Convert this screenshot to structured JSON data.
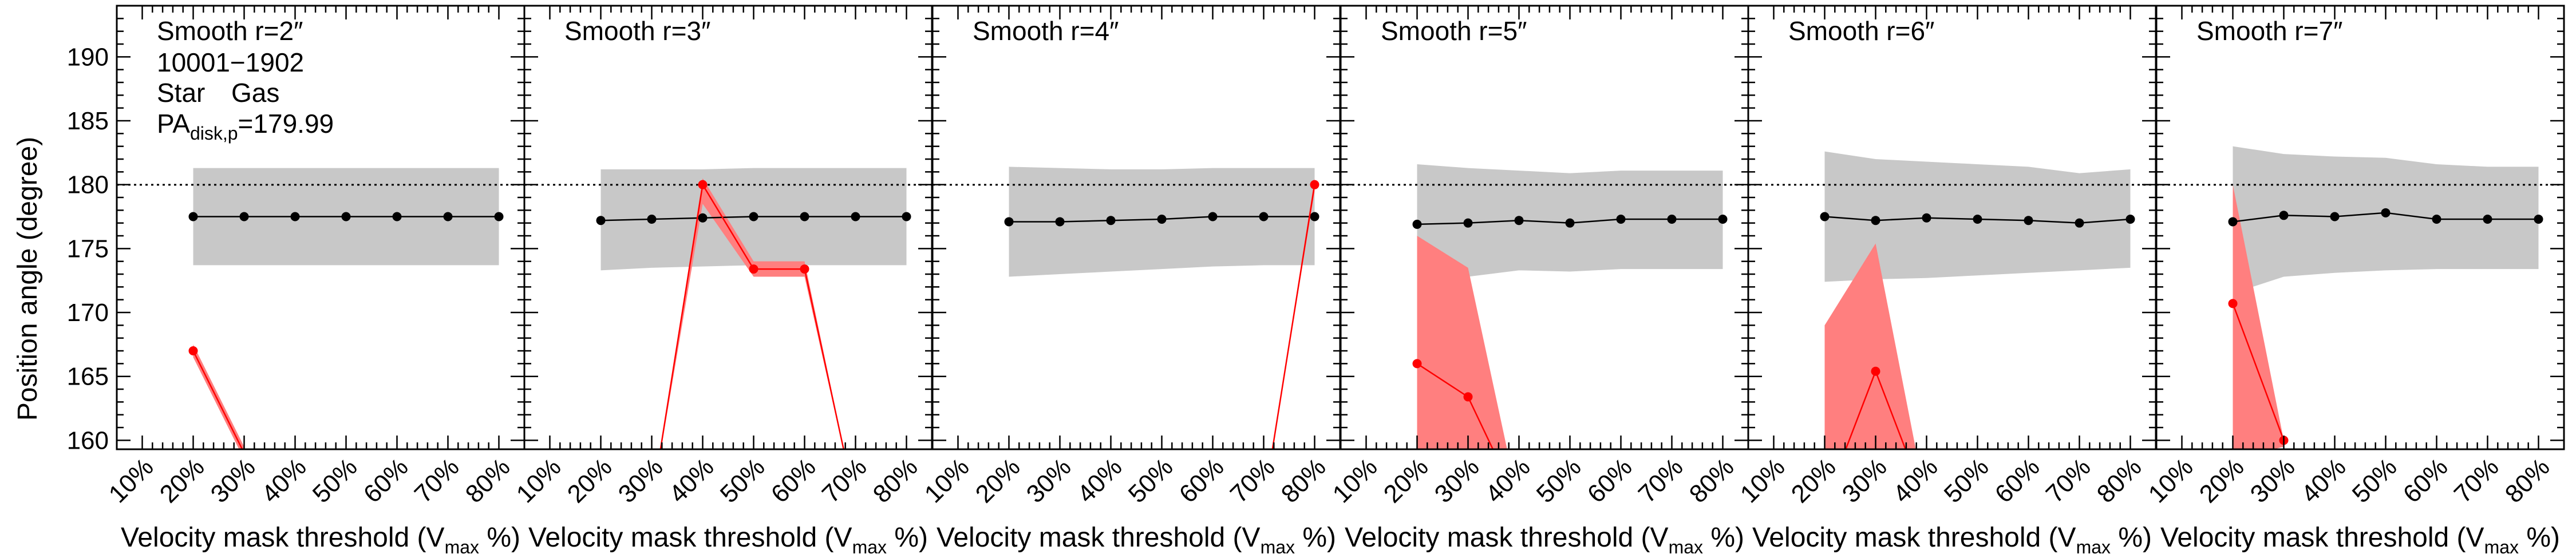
{
  "ylabel": "Position angle (degree)",
  "xlabel_main": "Velocity mask threshold (V",
  "xlabel_sub": "max",
  "xlabel_tail": " %)",
  "legend": {
    "star": "Star",
    "gas": "Gas",
    "id": "10001−1902",
    "pa_main": "PA",
    "pa_sub": "disk,p",
    "pa_value": "=179.99"
  },
  "colors": {
    "star": "#000000",
    "gas": "#ff0000",
    "gas_band": "#ff7f7f",
    "star_band": "#c8c8c8",
    "reference": "#000000"
  },
  "chart_data": {
    "type": "line",
    "x_ticks": [
      "10%",
      "20%",
      "30%",
      "40%",
      "50%",
      "60%",
      "70%",
      "80%"
    ],
    "xlim": [
      5,
      85
    ],
    "ylim": [
      159.3,
      194
    ],
    "y_ticks": [
      160,
      165,
      170,
      175,
      180,
      185,
      190
    ],
    "reference_line": 179.99,
    "panels": [
      {
        "title": "Smooth r=2″",
        "star": {
          "x": [
            20,
            30,
            40,
            50,
            60,
            70,
            80
          ],
          "y": [
            177.5,
            177.5,
            177.5,
            177.5,
            177.5,
            177.5,
            177.5
          ],
          "lower": [
            173.7,
            173.7,
            173.7,
            173.7,
            173.7,
            173.7,
            173.7
          ],
          "upper": [
            181.3,
            181.3,
            181.3,
            181.3,
            181.3,
            181.3,
            181.3
          ]
        },
        "gas": {
          "x": [
            20,
            30
          ],
          "y": [
            167.0,
            159.0
          ],
          "lower": [
            166.5,
            158.5
          ],
          "upper": [
            167.5,
            159.5
          ]
        }
      },
      {
        "title": "Smooth r=3″",
        "star": {
          "x": [
            20,
            30,
            40,
            50,
            60,
            70,
            80
          ],
          "y": [
            177.2,
            177.3,
            177.4,
            177.5,
            177.5,
            177.5,
            177.5
          ],
          "lower": [
            173.3,
            173.5,
            173.6,
            173.7,
            173.7,
            173.7,
            173.7
          ],
          "upper": [
            181.2,
            181.2,
            181.2,
            181.3,
            181.3,
            181.3,
            181.3
          ]
        },
        "gas": {
          "x": [
            30,
            40,
            50,
            60,
            70
          ],
          "y": [
            155.0,
            180.0,
            173.4,
            173.4,
            155.0
          ],
          "lower": [
            155.0,
            178.5,
            172.8,
            172.8,
            155.0
          ],
          "upper": [
            155.0,
            180.5,
            174.0,
            174.0,
            155.0
          ]
        }
      },
      {
        "title": "Smooth r=4″",
        "star": {
          "x": [
            20,
            30,
            40,
            50,
            60,
            70,
            80
          ],
          "y": [
            177.1,
            177.1,
            177.2,
            177.3,
            177.5,
            177.5,
            177.5
          ],
          "lower": [
            172.8,
            173.0,
            173.2,
            173.4,
            173.6,
            173.7,
            173.7
          ],
          "upper": [
            181.4,
            181.3,
            181.2,
            181.2,
            181.3,
            181.3,
            181.3
          ]
        },
        "gas": {
          "x": [
            70,
            80
          ],
          "y": [
            155.0,
            180.0
          ],
          "lower": [
            155.0,
            179.5
          ],
          "upper": [
            155.0,
            180.5
          ]
        }
      },
      {
        "title": "Smooth r=5″",
        "star": {
          "x": [
            20,
            30,
            40,
            50,
            60,
            70,
            80
          ],
          "y": [
            176.9,
            177.0,
            177.2,
            177.0,
            177.3,
            177.3,
            177.3
          ],
          "lower": [
            172.0,
            172.8,
            173.3,
            173.2,
            173.4,
            173.4,
            173.4
          ],
          "upper": [
            181.6,
            181.3,
            181.1,
            180.9,
            181.1,
            181.1,
            181.1
          ]
        },
        "gas": {
          "x": [
            20,
            30,
            40
          ],
          "y": [
            166.0,
            163.4,
            155.0
          ],
          "lower": [
            155.0,
            155.0,
            155.0
          ],
          "upper": [
            176.0,
            173.5,
            155.0
          ]
        }
      },
      {
        "title": "Smooth r=6″",
        "star": {
          "x": [
            20,
            30,
            40,
            50,
            60,
            70,
            80
          ],
          "y": [
            177.5,
            177.2,
            177.4,
            177.3,
            177.2,
            177.0,
            177.3
          ],
          "lower": [
            172.4,
            172.6,
            172.7,
            172.9,
            173.1,
            173.3,
            173.5
          ],
          "upper": [
            182.6,
            182.0,
            181.8,
            181.6,
            181.4,
            180.9,
            181.2
          ]
        },
        "gas": {
          "x": [
            20,
            30,
            40
          ],
          "y": [
            155.0,
            165.4,
            155.0
          ],
          "lower": [
            155.0,
            155.0,
            155.0
          ],
          "upper": [
            169.0,
            175.4,
            155.0
          ]
        }
      },
      {
        "title": "Smooth r=7″",
        "star": {
          "x": [
            20,
            30,
            40,
            50,
            60,
            70,
            80
          ],
          "y": [
            177.1,
            177.6,
            177.5,
            177.8,
            177.3,
            177.3,
            177.3
          ],
          "lower": [
            171.5,
            172.8,
            173.1,
            173.3,
            173.4,
            173.4,
            173.4
          ],
          "upper": [
            183.0,
            182.4,
            182.2,
            182.1,
            181.6,
            181.4,
            181.4
          ]
        },
        "gas": {
          "x": [
            20,
            30
          ],
          "y": [
            170.7,
            160.0
          ],
          "lower": [
            158.5,
            159.5
          ],
          "upper": [
            180.0,
            160.0
          ]
        }
      }
    ]
  }
}
